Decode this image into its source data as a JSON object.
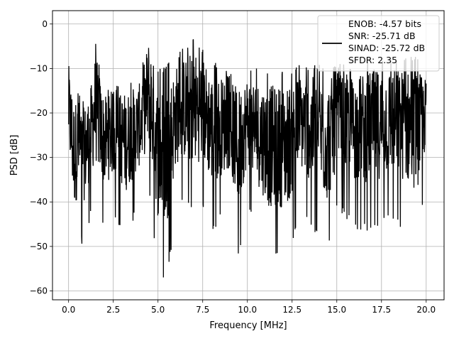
{
  "chart_data": {
    "type": "line",
    "title": "",
    "xlabel": "Frequency [MHz]",
    "ylabel": "PSD [dB]",
    "xlim": [
      -0.9,
      21.0
    ],
    "ylim": [
      -62.0,
      3.0
    ],
    "xticks": [
      0.0,
      2.5,
      5.0,
      7.5,
      10.0,
      12.5,
      15.0,
      17.5,
      20.0
    ],
    "xtick_labels": [
      "0.0",
      "2.5",
      "5.0",
      "7.5",
      "10.0",
      "12.5",
      "15.0",
      "17.5",
      "20.0"
    ],
    "yticks": [
      0,
      -10,
      -20,
      -30,
      -40,
      -50,
      -60
    ],
    "ytick_labels": [
      "0",
      "−10",
      "−20",
      "−30",
      "−40",
      "−50",
      "−60"
    ],
    "grid": true,
    "legend_placement": "top-right",
    "legend_lines": [
      "ENOB: -4.57 bits",
      "SNR: -25.71 dB",
      "SINAD: -25.72 dB",
      "SFDR: 2.35"
    ],
    "series": [
      {
        "color": "#000000",
        "x_start": 0.0,
        "x_end": 20.0,
        "num_points": 1400,
        "envelope": [
          {
            "x": 0.0,
            "top": -7.5,
            "bottom": -38
          },
          {
            "x": 0.3,
            "top": -14,
            "bottom": -53
          },
          {
            "x": 0.6,
            "top": -15,
            "bottom": -47
          },
          {
            "x": 0.8,
            "top": -17,
            "bottom": -51
          },
          {
            "x": 1.2,
            "top": -14,
            "bottom": -44
          },
          {
            "x": 1.5,
            "top": -3.5,
            "bottom": -42
          },
          {
            "x": 2.0,
            "top": -15,
            "bottom": -46
          },
          {
            "x": 2.5,
            "top": -14,
            "bottom": -43
          },
          {
            "x": 3.2,
            "top": -13,
            "bottom": -48
          },
          {
            "x": 4.0,
            "top": -12,
            "bottom": -41
          },
          {
            "x": 4.5,
            "top": 0,
            "bottom": -38
          },
          {
            "x": 5.0,
            "top": -10,
            "bottom": -56
          },
          {
            "x": 5.5,
            "top": -9,
            "bottom": -58.5
          },
          {
            "x": 6.0,
            "top": -7,
            "bottom": -42
          },
          {
            "x": 6.5,
            "top": -5,
            "bottom": -41
          },
          {
            "x": 7.0,
            "top": -2.5,
            "bottom": -43
          },
          {
            "x": 7.5,
            "top": -5,
            "bottom": -41
          },
          {
            "x": 8.0,
            "top": -8,
            "bottom": -47
          },
          {
            "x": 9.0,
            "top": -11,
            "bottom": -42
          },
          {
            "x": 9.5,
            "top": -11,
            "bottom": -53
          },
          {
            "x": 10.0,
            "top": -10,
            "bottom": -41
          },
          {
            "x": 11.2,
            "top": -10,
            "bottom": -53
          },
          {
            "x": 12.2,
            "top": -10,
            "bottom": -53
          },
          {
            "x": 13.0,
            "top": -9,
            "bottom": -43
          },
          {
            "x": 14.5,
            "top": -9,
            "bottom": -52
          },
          {
            "x": 15.0,
            "top": -9,
            "bottom": -42
          },
          {
            "x": 16.0,
            "top": -9,
            "bottom": -46
          },
          {
            "x": 17.0,
            "top": -7,
            "bottom": -47
          },
          {
            "x": 18.0,
            "top": -7,
            "bottom": -44
          },
          {
            "x": 19.5,
            "top": -7,
            "bottom": -49
          },
          {
            "x": 20.0,
            "top": -12,
            "bottom": -36
          }
        ]
      }
    ]
  }
}
